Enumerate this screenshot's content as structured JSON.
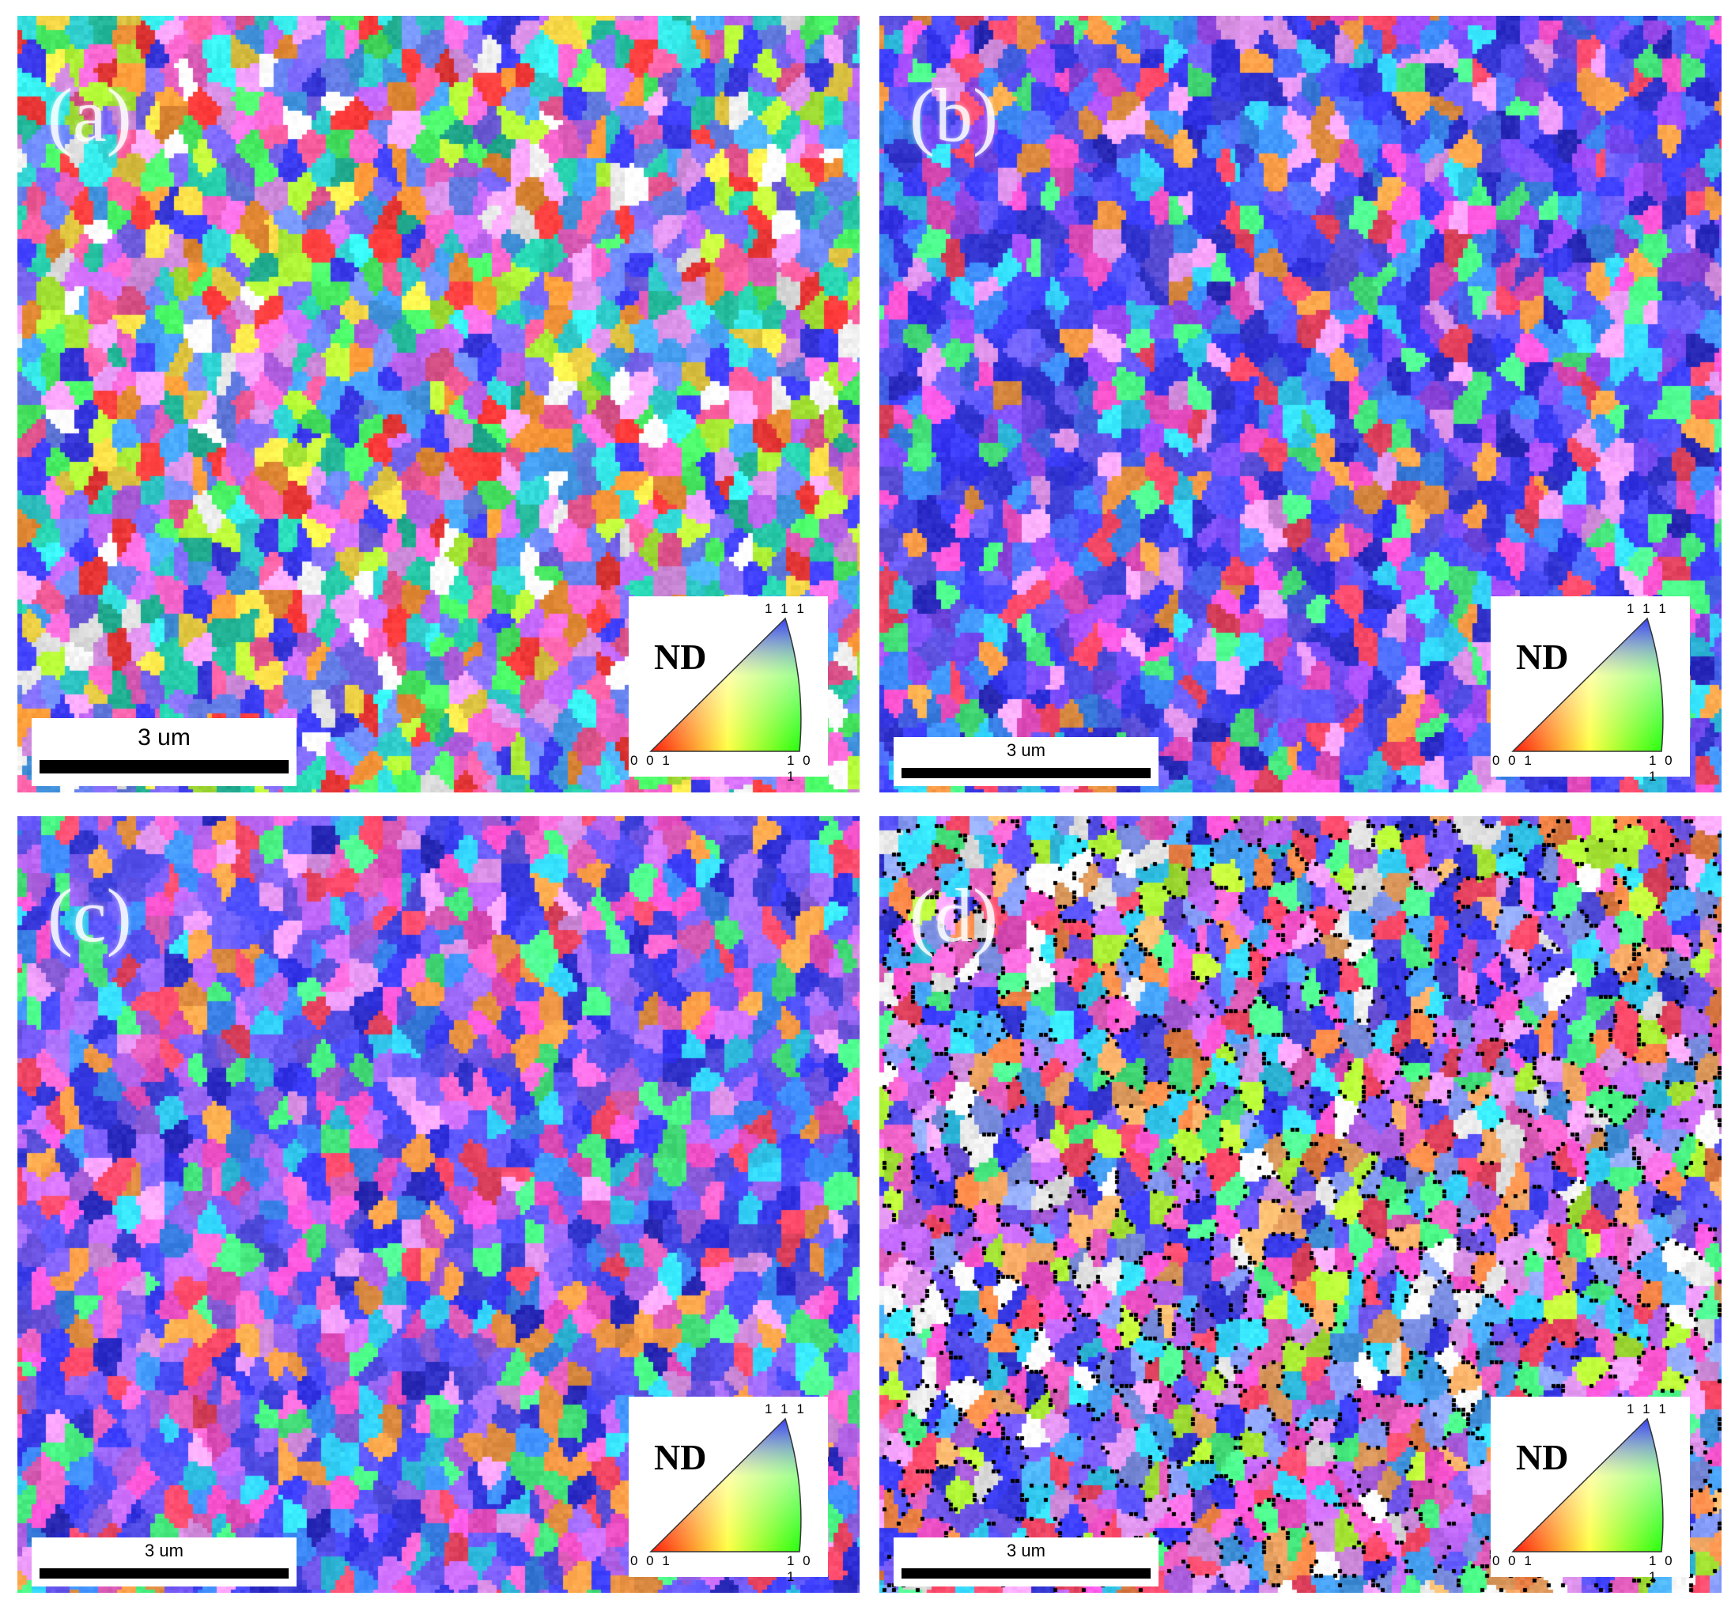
{
  "figure": {
    "panels": [
      {
        "id": "a",
        "label": "(a)",
        "scale_bar": "3 um",
        "scale_bar_style": "large",
        "legend": {
          "axis": "ND",
          "pole_111": "1 1 1",
          "pole_001": "0 0 1",
          "pole_101": "1 0 1"
        },
        "map_texture": "random-mixed-orientation",
        "seed": 11
      },
      {
        "id": "b",
        "label": "(b)",
        "scale_bar": "3 um",
        "scale_bar_style": "small",
        "legend": {
          "axis": "ND",
          "pole_111": "1 1 1",
          "pole_001": "0 0 1",
          "pole_101": "1 0 1"
        },
        "map_texture": "strong-111-blue",
        "seed": 23
      },
      {
        "id": "c",
        "label": "(c)",
        "scale_bar": "3 um",
        "scale_bar_style": "small",
        "legend": {
          "axis": "ND",
          "pole_111": "1 1 1",
          "pole_001": "0 0 1",
          "pole_101": "1 0 1"
        },
        "map_texture": "moderate-111-blue",
        "seed": 37
      },
      {
        "id": "d",
        "label": "(d)",
        "scale_bar": "3 um",
        "scale_bar_style": "small",
        "legend": {
          "axis": "ND",
          "pole_111": "1 1 1",
          "pole_001": "0 0 1",
          "pole_101": "1 0 1"
        },
        "map_texture": "mixed-with-black-boundaries",
        "seed": 53
      }
    ],
    "palettes": {
      "random-mixed-orientation": [
        "#ff3b3b",
        "#ff6ad5",
        "#f0a0ff",
        "#7f6bff",
        "#3f3fff",
        "#4aa8ff",
        "#35e0e0",
        "#4dff6a",
        "#b8ff3a",
        "#ffe04a",
        "#ff9a3a",
        "#c86bff",
        "#ffffff",
        "#ff5fa0",
        "#6f8bff",
        "#27c9a8"
      ],
      "strong-111-blue": [
        "#3a3cf0",
        "#3a3cf0",
        "#4a4cff",
        "#5b55ff",
        "#2f2fd8",
        "#6a5cff",
        "#4c6bff",
        "#3f8dff",
        "#7a4dff",
        "#a24dff",
        "#ff55d4",
        "#ff4a6a",
        "#35d6ff",
        "#ffa04a",
        "#4dff8a",
        "#f2a0ff"
      ],
      "moderate-111-blue": [
        "#3a3cf0",
        "#4a4cff",
        "#5b55ff",
        "#6a5cff",
        "#7a5dff",
        "#a06bff",
        "#c46bff",
        "#ff55d4",
        "#ff4a6a",
        "#35d6ff",
        "#4dff8a",
        "#ffa04a",
        "#3f8dff",
        "#f2a0ff",
        "#2f2fd8",
        "#ff6ad5"
      ],
      "mixed-with-black-boundaries": [
        "#3a3cf0",
        "#5b55ff",
        "#7a5dff",
        "#ff6ad5",
        "#f0a0ff",
        "#ff4a6a",
        "#ff8a4a",
        "#ffb06a",
        "#35d6ff",
        "#4dff8a",
        "#b8ff3a",
        "#c46bff",
        "#ff55d4",
        "#8aa0ff",
        "#ffffff",
        "#4aa8ff"
      ]
    },
    "boundary_colors": {
      "mixed-with-black-boundaries": "#000000"
    }
  }
}
